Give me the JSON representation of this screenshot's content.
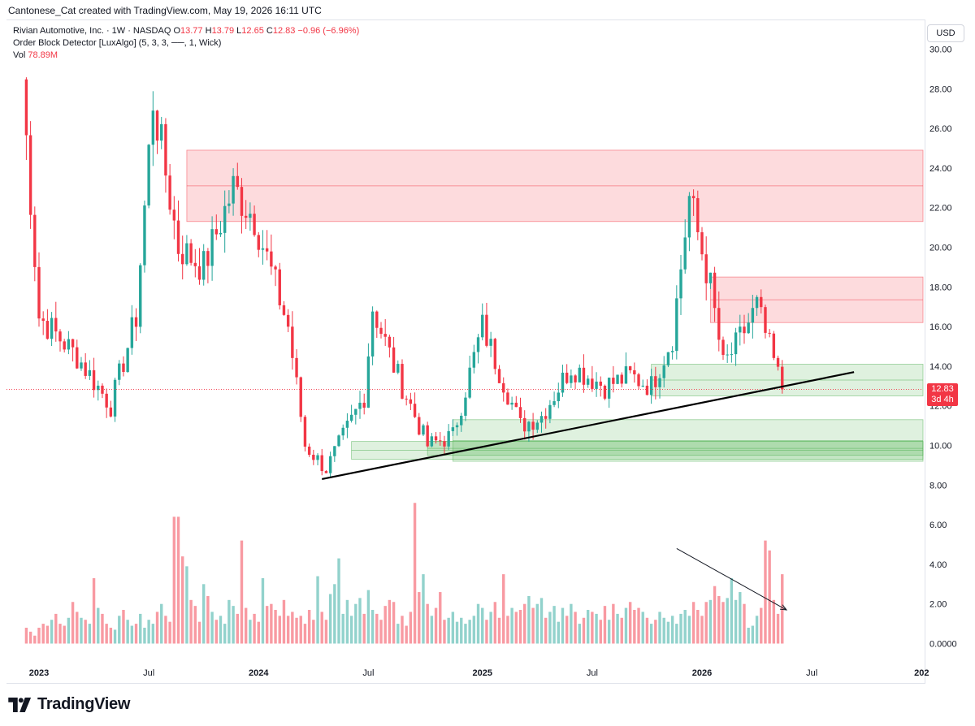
{
  "header": {
    "text": "Cantonese_Cat created with TradingView.com, May 19, 2026 16:11 UTC"
  },
  "legend": {
    "symbol": "Rivian Automotive, Inc. · 1W · NASDAQ",
    "open_label": "O",
    "open": "13.77",
    "high_label": "H",
    "high": "13.79",
    "low_label": "L",
    "low": "12.65",
    "close_label": "C",
    "close": "12.83",
    "change": "−0.96 (−6.96%)",
    "indicator": "Order Block Detector [LuxAlgo] (5, 3, 3, ──, 1, Wick)",
    "vol_label": "Vol",
    "vol": "78.89M"
  },
  "currency": "USD",
  "price_tag": {
    "price": "12.83",
    "countdown": "3d 4h"
  },
  "brand": {
    "name": "TradingView"
  },
  "colors": {
    "up": "#26a69a",
    "down": "#f23645",
    "bear_zone": "#f23645",
    "bull_zone": "#4caf50",
    "trendline": "#000000"
  },
  "chart_data": {
    "type": "candlestick",
    "title": "",
    "interval": "1W",
    "y_axis_ticks": [
      "30.00",
      "28.00",
      "26.00",
      "24.00",
      "22.00",
      "20.00",
      "18.00",
      "16.00",
      "14.00",
      "12.00",
      "10.00",
      "8.00",
      "6.00",
      "4.00",
      "2.00",
      "0.0000"
    ],
    "x_axis_ticks": [
      "2023",
      "Jul",
      "2024",
      "Jul",
      "2025",
      "Jul",
      "2026",
      "Jul",
      "202"
    ],
    "ylim": [
      -0.5,
      31.5
    ],
    "grid": false,
    "last_price": 12.83,
    "ohlc_anchors": [
      {
        "date": "2022-12-05",
        "close": 28.5
      },
      {
        "date": "2023-01-02",
        "close": 16.5
      },
      {
        "date": "2023-03-06",
        "close": 14.5
      },
      {
        "date": "2023-05-01",
        "close": 12.0
      },
      {
        "date": "2023-06-12",
        "close": 16.5
      },
      {
        "date": "2023-07-10",
        "close": 27.5
      },
      {
        "date": "2023-08-21",
        "close": 20.0
      },
      {
        "date": "2023-10-02",
        "close": 19.0
      },
      {
        "date": "2023-11-20",
        "close": 23.0
      },
      {
        "date": "2023-12-25",
        "close": 21.5
      },
      {
        "date": "2024-02-19",
        "close": 16.0
      },
      {
        "date": "2024-03-18",
        "close": 10.0
      },
      {
        "date": "2024-04-22",
        "close": 8.8
      },
      {
        "date": "2024-06-24",
        "close": 12.5
      },
      {
        "date": "2024-07-08",
        "close": 17.0
      },
      {
        "date": "2024-08-12",
        "close": 14.0
      },
      {
        "date": "2024-10-07",
        "close": 10.0
      },
      {
        "date": "2024-11-18",
        "close": 10.5
      },
      {
        "date": "2025-01-06",
        "close": 16.0
      },
      {
        "date": "2025-03-10",
        "close": 11.0
      },
      {
        "date": "2025-04-14",
        "close": 11.5
      },
      {
        "date": "2025-06-02",
        "close": 14.0
      },
      {
        "date": "2025-07-28",
        "close": 13.0
      },
      {
        "date": "2025-09-08",
        "close": 13.5
      },
      {
        "date": "2025-10-13",
        "close": 13.0
      },
      {
        "date": "2025-11-17",
        "close": 15.5
      },
      {
        "date": "2025-12-15",
        "close": 22.5
      },
      {
        "date": "2026-01-19",
        "close": 18.0
      },
      {
        "date": "2026-02-09",
        "close": 14.0
      },
      {
        "date": "2026-03-02",
        "close": 15.0
      },
      {
        "date": "2026-04-06",
        "close": 17.0
      },
      {
        "date": "2026-05-18",
        "close": 12.83
      }
    ],
    "order_blocks": [
      {
        "kind": "bearish",
        "from": "2023-09-04",
        "to": "right-edge",
        "top": 24.9,
        "bottom": 21.3,
        "mid": 23.1
      },
      {
        "kind": "bearish",
        "from": "2026-01-19",
        "to": "right-edge",
        "top": 18.5,
        "bottom": 16.2,
        "mid": 17.35
      },
      {
        "kind": "bullish",
        "from": "2025-10-13",
        "to": "right-edge",
        "top": 14.1,
        "bottom": 12.5,
        "mid": 13.3
      },
      {
        "kind": "bullish",
        "from": "2024-11-18",
        "to": "right-edge",
        "top": 11.3,
        "bottom": 9.2,
        "mid": 10.25
      },
      {
        "kind": "bullish",
        "from": "2024-06-03",
        "to": "right-edge",
        "top": 10.2,
        "bottom": 9.3,
        "mid": 9.75
      },
      {
        "kind": "bullish",
        "from": "2024-10-07",
        "to": "right-edge",
        "top": 10.2,
        "bottom": 9.5,
        "mid": 9.85
      }
    ],
    "trendline": {
      "from": {
        "date": "2024-04-15",
        "price": 8.3
      },
      "to": {
        "date": "2026-09-14",
        "price": 13.7
      }
    },
    "volume_note_arrow": {
      "from": {
        "date": "2025-11-24",
        "value": 4.8
      },
      "to": {
        "date": "2026-05-25",
        "value": 1.7
      }
    },
    "volume_scale": "millions-of-shares / 10^7 on right axis",
    "volume_values_in_axis_units": [
      0.8,
      0.6,
      0.4,
      0.8,
      1.0,
      0.9,
      1.2,
      1.5,
      1.0,
      0.9,
      1.3,
      2.1,
      1.6,
      1.3,
      1.2,
      1.0,
      3.3,
      1.8,
      1.5,
      1.0,
      0.8,
      0.7,
      1.4,
      1.7,
      1.2,
      0.9,
      1.0,
      1.5,
      0.8,
      1.2,
      1.0,
      1.6,
      2.0,
      1.4,
      1.1,
      6.4,
      6.4,
      4.4,
      3.9,
      2.2,
      1.9,
      1.1,
      3.0,
      2.4,
      1.6,
      1.2,
      1.4,
      1.0,
      2.2,
      1.9,
      1.5,
      5.2,
      1.8,
      1.2,
      1.5,
      1.1,
      3.3,
      1.9,
      2.0,
      1.7,
      1.4,
      2.2,
      1.4,
      1.6,
      1.3,
      1.4,
      1.0,
      1.7,
      1.2,
      3.4,
      1.6,
      1.2,
      2.5,
      3.0,
      4.3,
      1.5,
      2.2,
      1.4,
      2.0,
      2.3,
      1.5,
      2.7,
      1.7,
      1.5,
      1.2,
      1.9,
      2.2,
      2.1,
      1.0,
      1.4,
      0.9,
      1.6,
      7.1,
      2.6,
      3.5,
      2.0,
      1.4,
      1.8,
      2.6,
      1.2,
      1.3,
      1.6,
      1.1,
      1.3,
      1.0,
      1.2,
      1.4,
      2.0,
      1.8,
      1.2,
      1.6,
      2.1,
      1.3,
      3.5,
      1.4,
      1.8,
      1.6,
      1.7,
      2.0,
      2.4,
      1.8,
      2.0,
      2.3,
      1.3,
      1.6,
      1.9,
      1.1,
      1.8,
      1.4,
      2.0,
      1.6,
      1.0,
      1.3,
      1.7,
      1.6,
      1.5,
      1.2,
      1.9,
      1.2,
      2.0,
      1.5,
      1.3,
      1.8,
      2.1,
      1.7,
      1.8,
      1.6,
      1.3,
      1.0,
      1.2,
      1.6,
      1.3,
      1.1,
      1.4,
      1.0,
      1.5,
      1.7,
      1.4,
      2.1,
      1.7,
      1.4,
      2.1,
      2.2,
      2.9,
      2.4,
      2.1,
      2.3,
      3.3,
      2.2,
      2.6,
      2.0,
      0.8,
      0.9,
      1.4,
      1.8,
      5.2,
      4.7,
      2.2,
      1.5,
      3.5,
      3.5,
      1.6,
      1.3,
      2.0,
      1.7,
      1.3,
      1.1,
      1.7,
      1.0,
      1.4,
      1.2,
      1.5,
      1.1,
      2.1,
      2.0,
      1.7,
      1.2,
      1.1,
      1.5,
      1.4,
      1.3,
      1.6,
      1.4,
      1.2,
      0.9
    ],
    "volume_colors_up": "derived from candle direction"
  }
}
